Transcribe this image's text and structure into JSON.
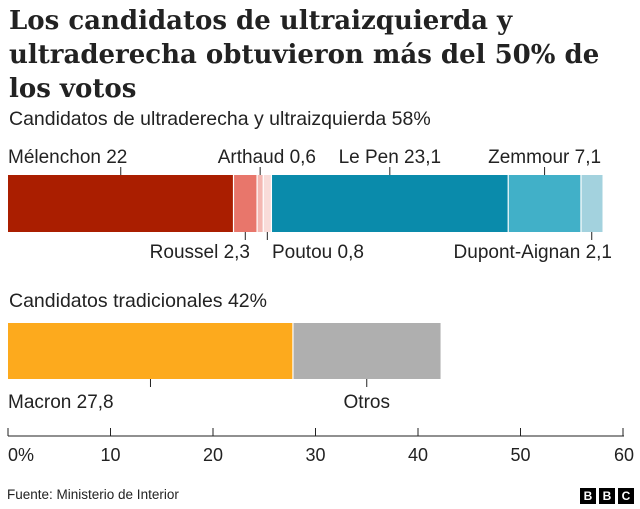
{
  "title": "Los candidatos de ultraizquierda y ultraderecha obtuvieron más del 50% de los votos",
  "chart_data": {
    "type": "bar",
    "orientation": "horizontal-stacked",
    "xlim": [
      0,
      60
    ],
    "x_ticks": [
      "0%",
      "10",
      "20",
      "30",
      "40",
      "50",
      "60"
    ],
    "x_tick_values": [
      0,
      10,
      20,
      30,
      40,
      50,
      60
    ],
    "groups": [
      {
        "title": "Candidatos de ultraderecha y ultraizquierda 58%",
        "segments": [
          {
            "name": "Mélenchon",
            "value": 22,
            "label": "Mélenchon 22",
            "color": "#aa1e00",
            "label_pos": "top"
          },
          {
            "name": "Roussel",
            "value": 2.3,
            "label": "Roussel 2,3",
            "color": "#e8766b",
            "label_pos": "bottom"
          },
          {
            "name": "Arthaud",
            "value": 0.6,
            "label": "Arthaud 0,6",
            "color": "#f4b8b2",
            "label_pos": "top"
          },
          {
            "name": "Poutou",
            "value": 0.8,
            "label": "Poutou 0,8",
            "color": "#f9dcd9",
            "label_pos": "bottom"
          },
          {
            "name": "Le Pen",
            "value": 23.1,
            "label": "Le Pen 23,1",
            "color": "#0a8bab",
            "label_pos": "top"
          },
          {
            "name": "Zemmour",
            "value": 7.1,
            "label": "Zemmour 7,1",
            "color": "#41b0c8",
            "label_pos": "top"
          },
          {
            "name": "Dupont-Aignan",
            "value": 2.1,
            "label": "Dupont-Aignan 2,1",
            "color": "#a3d2de",
            "label_pos": "bottom"
          }
        ]
      },
      {
        "title": "Candidatos tradicionales 42%",
        "segments": [
          {
            "name": "Macron",
            "value": 27.8,
            "label": "Macron 27,8",
            "color": "#fdaa1d",
            "label_pos": "bottom"
          },
          {
            "name": "Otros",
            "value": 14.4,
            "label": "Otros",
            "color": "#afafaf",
            "label_pos": "bottom"
          }
        ]
      }
    ]
  },
  "footer": {
    "source": "Fuente: Ministerio de Interior",
    "logo": [
      "B",
      "B",
      "C"
    ]
  }
}
